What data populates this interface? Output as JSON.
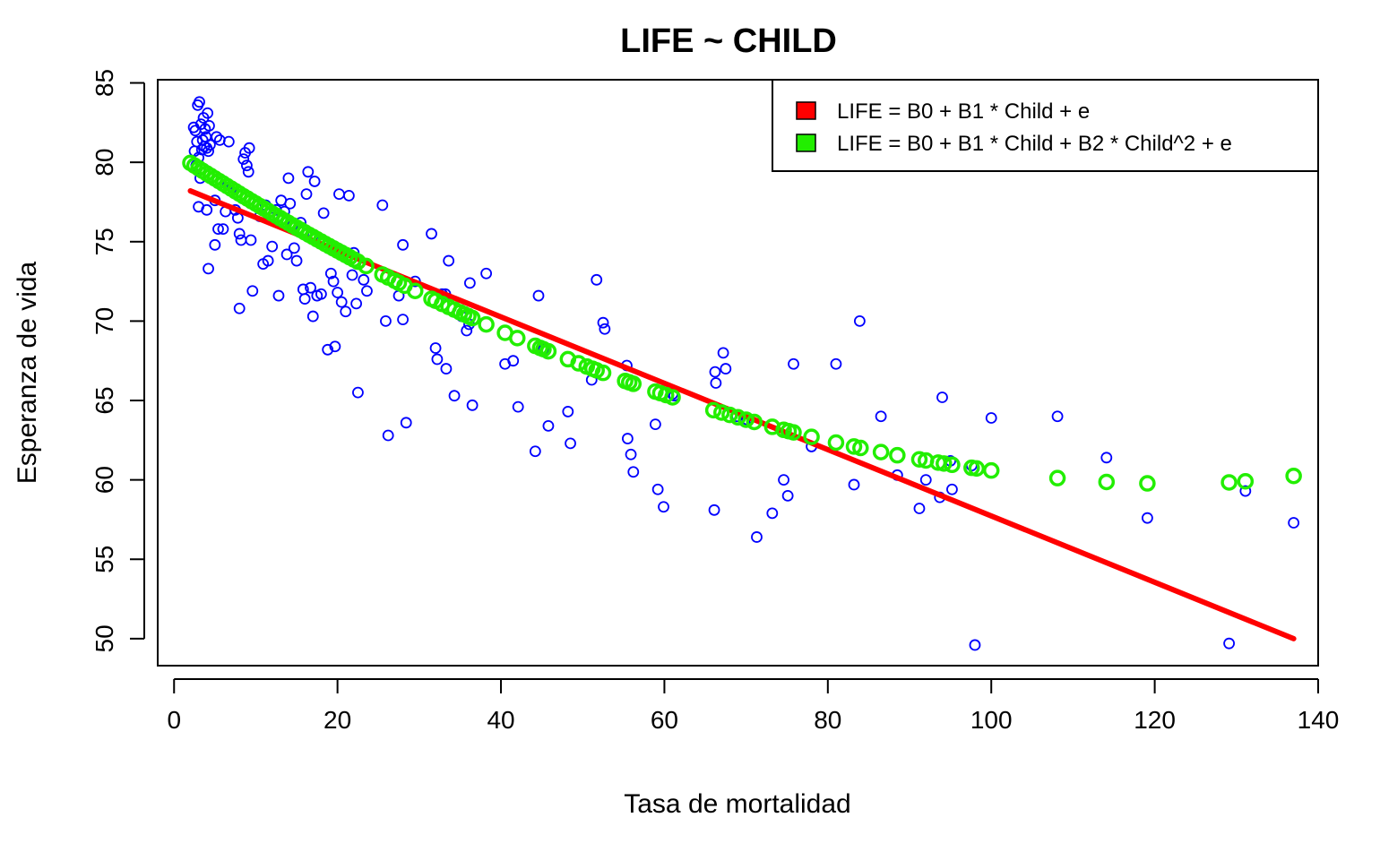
{
  "chart_data": {
    "type": "scatter",
    "title": "LIFE ~ CHILD",
    "xlabel": "Tasa de mortalidad",
    "ylabel": "Esperanza de vida",
    "xlim": [
      -2,
      140
    ],
    "ylim": [
      48.3,
      85.2
    ],
    "x_ticks": [
      0,
      20,
      40,
      60,
      80,
      100,
      120,
      140
    ],
    "y_ticks": [
      50,
      55,
      60,
      65,
      70,
      75,
      80,
      85
    ],
    "grid": false,
    "legend": {
      "position": "top-right",
      "entries": [
        {
          "label": "LIFE = B0 + B1 * Child + e",
          "color": "#FF0000"
        },
        {
          "label": "LIFE = B0 + B1 * Child + B2 * Child^2 + e",
          "color": "#22EE00"
        }
      ]
    },
    "series": [
      {
        "kind": "points",
        "color": "#0000FF",
        "points": [
          [
            2.4,
            82.2
          ],
          [
            2.6,
            82.0
          ],
          [
            2.9,
            83.6
          ],
          [
            3.1,
            83.8
          ],
          [
            3.3,
            82.4
          ],
          [
            3.6,
            82.8
          ],
          [
            3.8,
            82.1
          ],
          [
            3.9,
            81.6
          ],
          [
            4.1,
            83.1
          ],
          [
            4.3,
            82.3
          ],
          [
            2.5,
            80.7
          ],
          [
            2.8,
            81.3
          ],
          [
            3.0,
            80.3
          ],
          [
            3.4,
            80.8
          ],
          [
            3.7,
            81.0
          ],
          [
            4.0,
            80.9
          ],
          [
            4.2,
            80.7
          ],
          [
            4.4,
            81.1
          ],
          [
            3.5,
            81.4
          ],
          [
            2.7,
            79.8
          ],
          [
            3.2,
            79.0
          ],
          [
            3.0,
            77.2
          ],
          [
            4.0,
            77.0
          ],
          [
            5.0,
            77.6
          ],
          [
            5.2,
            81.6
          ],
          [
            5.6,
            81.4
          ],
          [
            6.7,
            81.3
          ],
          [
            4.2,
            73.3
          ],
          [
            5.0,
            74.8
          ],
          [
            5.4,
            75.8
          ],
          [
            6.0,
            75.8
          ],
          [
            6.3,
            76.9
          ],
          [
            6.6,
            78.6
          ],
          [
            7.1,
            78.4
          ],
          [
            7.5,
            77.0
          ],
          [
            7.8,
            76.5
          ],
          [
            8.0,
            75.5
          ],
          [
            8.2,
            75.1
          ],
          [
            8.5,
            80.2
          ],
          [
            8.7,
            80.6
          ],
          [
            8.9,
            79.8
          ],
          [
            9.1,
            79.4
          ],
          [
            9.2,
            80.9
          ],
          [
            9.4,
            75.1
          ],
          [
            9.6,
            71.9
          ],
          [
            8.0,
            70.8
          ],
          [
            10.5,
            76.6
          ],
          [
            10.9,
            73.6
          ],
          [
            11.2,
            77.3
          ],
          [
            11.5,
            73.8
          ],
          [
            12.0,
            74.7
          ],
          [
            12.5,
            77.0
          ],
          [
            12.8,
            71.6
          ],
          [
            13.1,
            77.6
          ],
          [
            13.5,
            76.9
          ],
          [
            13.8,
            74.2
          ],
          [
            14.0,
            79.0
          ],
          [
            14.2,
            77.4
          ],
          [
            14.5,
            76.0
          ],
          [
            14.7,
            74.6
          ],
          [
            15.0,
            73.8
          ],
          [
            15.3,
            75.8
          ],
          [
            15.5,
            76.2
          ],
          [
            15.8,
            72.0
          ],
          [
            16.0,
            71.4
          ],
          [
            16.2,
            78.0
          ],
          [
            16.4,
            79.4
          ],
          [
            16.7,
            72.1
          ],
          [
            17.0,
            75.4
          ],
          [
            17.2,
            78.8
          ],
          [
            17.0,
            70.3
          ],
          [
            17.5,
            71.6
          ],
          [
            18.0,
            71.7
          ],
          [
            18.3,
            76.8
          ],
          [
            18.8,
            68.2
          ],
          [
            19.2,
            73.0
          ],
          [
            19.5,
            72.5
          ],
          [
            19.7,
            68.4
          ],
          [
            20.0,
            71.8
          ],
          [
            20.2,
            78.0
          ],
          [
            20.5,
            71.2
          ],
          [
            20.7,
            74.4
          ],
          [
            21.0,
            70.6
          ],
          [
            21.4,
            77.9
          ],
          [
            21.8,
            72.9
          ],
          [
            22.0,
            74.3
          ],
          [
            22.3,
            71.1
          ],
          [
            22.5,
            65.5
          ],
          [
            23.2,
            72.6
          ],
          [
            23.6,
            71.9
          ],
          [
            25.5,
            77.3
          ],
          [
            25.9,
            70.0
          ],
          [
            26.2,
            62.8
          ],
          [
            27.5,
            71.6
          ],
          [
            28.0,
            74.8
          ],
          [
            28.0,
            70.1
          ],
          [
            28.4,
            63.6
          ],
          [
            29.5,
            72.5
          ],
          [
            31.5,
            75.5
          ],
          [
            32.0,
            68.3
          ],
          [
            32.2,
            67.6
          ],
          [
            32.8,
            71.7
          ],
          [
            33.2,
            71.7
          ],
          [
            33.3,
            67.0
          ],
          [
            33.6,
            73.8
          ],
          [
            34.3,
            65.3
          ],
          [
            35.2,
            70.3
          ],
          [
            35.8,
            69.4
          ],
          [
            36.1,
            69.8
          ],
          [
            36.2,
            72.4
          ],
          [
            36.5,
            64.7
          ],
          [
            38.2,
            73.0
          ],
          [
            40.5,
            67.3
          ],
          [
            41.5,
            67.5
          ],
          [
            42.1,
            64.6
          ],
          [
            44.2,
            61.8
          ],
          [
            44.6,
            71.6
          ],
          [
            45.2,
            68.2
          ],
          [
            45.8,
            63.4
          ],
          [
            48.2,
            64.3
          ],
          [
            48.5,
            62.3
          ],
          [
            51.1,
            66.3
          ],
          [
            51.7,
            72.6
          ],
          [
            52.5,
            69.9
          ],
          [
            52.7,
            69.5
          ],
          [
            55.4,
            67.2
          ],
          [
            55.5,
            62.6
          ],
          [
            55.9,
            61.6
          ],
          [
            56.2,
            60.5
          ],
          [
            58.9,
            63.5
          ],
          [
            59.2,
            59.4
          ],
          [
            59.9,
            58.3
          ],
          [
            61.0,
            65.4
          ],
          [
            61.2,
            65.3
          ],
          [
            66.1,
            58.1
          ],
          [
            66.2,
            66.8
          ],
          [
            66.3,
            66.1
          ],
          [
            67.2,
            68.0
          ],
          [
            67.5,
            67.0
          ],
          [
            68.9,
            64.0
          ],
          [
            69.8,
            63.7
          ],
          [
            70.1,
            63.8
          ],
          [
            71.3,
            56.4
          ],
          [
            73.2,
            57.9
          ],
          [
            74.6,
            60.0
          ],
          [
            75.1,
            59.0
          ],
          [
            75.8,
            67.3
          ],
          [
            78.0,
            62.1
          ],
          [
            81.0,
            67.3
          ],
          [
            83.2,
            59.7
          ],
          [
            83.9,
            70.0
          ],
          [
            86.5,
            64.0
          ],
          [
            88.5,
            60.3
          ],
          [
            91.2,
            58.2
          ],
          [
            92.0,
            60.0
          ],
          [
            93.7,
            58.9
          ],
          [
            94.0,
            65.2
          ],
          [
            95.0,
            61.2
          ],
          [
            95.2,
            59.4
          ],
          [
            97.6,
            60.9
          ],
          [
            98.0,
            49.6
          ],
          [
            100.0,
            63.9
          ],
          [
            108.1,
            64.0
          ],
          [
            114.1,
            61.4
          ],
          [
            119.1,
            57.6
          ],
          [
            129.1,
            49.7
          ],
          [
            131.1,
            59.3
          ],
          [
            137.0,
            57.3
          ]
        ]
      },
      {
        "kind": "line",
        "label": "LIFE = B0 + B1 * Child + e",
        "color": "#FF0000",
        "x": [
          2.0,
          137.0
        ],
        "y": [
          78.2,
          50.0
        ]
      },
      {
        "kind": "points",
        "label": "LIFE = B0 + B1 * Child + B2 * Child^2 + e",
        "color": "#22EE00",
        "x": [
          2.0,
          2.5,
          3.0,
          3.5,
          4.0,
          4.5,
          5.0,
          5.5,
          6.0,
          6.5,
          7.0,
          7.5,
          8.0,
          8.5,
          9.0,
          9.5,
          10.0,
          10.5,
          11.0,
          11.5,
          12.0,
          12.5,
          13.0,
          13.5,
          14.0,
          14.5,
          15.0,
          15.5,
          16.0,
          16.5,
          17.0,
          17.5,
          18.0,
          18.5,
          19.0,
          19.5,
          20.0,
          20.5,
          21.0,
          21.5,
          22.0,
          22.5,
          23.5,
          25.5,
          26.2,
          27.0,
          27.5,
          28.2,
          29.5,
          31.5,
          32.0,
          32.8,
          33.6,
          34.3,
          35.0,
          35.5,
          36.0,
          36.5,
          38.2,
          40.5,
          42.0,
          44.2,
          44.8,
          45.2,
          45.8,
          48.2,
          49.5,
          50.5,
          51.2,
          51.7,
          52.5,
          55.2,
          55.7,
          56.2,
          58.9,
          59.5,
          60.2,
          61.0,
          66.0,
          67.0,
          68.0,
          69.0,
          70.0,
          71.0,
          73.2,
          74.6,
          75.2,
          75.8,
          78.0,
          81.0,
          83.2,
          84.0,
          86.5,
          88.5,
          91.2,
          92.0,
          93.5,
          94.2,
          95.2,
          97.6,
          98.2,
          100.0,
          108.1,
          114.1,
          119.1,
          129.1,
          131.1,
          137.0
        ],
        "y": [
          79.96,
          79.79,
          79.63,
          79.46,
          79.3,
          79.14,
          78.98,
          78.82,
          78.66,
          78.5,
          78.34,
          78.18,
          78.02,
          77.86,
          77.71,
          77.55,
          77.4,
          77.24,
          77.09,
          76.94,
          76.78,
          76.63,
          76.48,
          76.33,
          76.18,
          76.03,
          75.88,
          75.74,
          75.59,
          75.44,
          75.3,
          75.15,
          75.01,
          74.86,
          74.72,
          74.58,
          74.44,
          74.3,
          74.16,
          74.02,
          73.88,
          73.74,
          73.47,
          72.93,
          72.75,
          72.54,
          72.41,
          72.23,
          71.9,
          71.4,
          71.28,
          71.08,
          70.89,
          70.72,
          70.55,
          70.43,
          70.31,
          70.19,
          69.79,
          69.26,
          68.93,
          68.44,
          68.31,
          68.23,
          68.1,
          67.6,
          67.34,
          67.14,
          67.0,
          66.9,
          66.74,
          66.23,
          66.14,
          66.05,
          65.56,
          65.46,
          65.34,
          65.2,
          64.39,
          64.24,
          64.09,
          63.94,
          63.79,
          63.65,
          63.34,
          63.15,
          63.07,
          62.99,
          62.71,
          62.35,
          62.1,
          62.01,
          61.75,
          61.55,
          61.29,
          61.22,
          61.09,
          61.03,
          60.95,
          60.76,
          60.72,
          60.59,
          60.11,
          59.87,
          59.78,
          59.84,
          59.91,
          60.25
        ]
      }
    ]
  }
}
